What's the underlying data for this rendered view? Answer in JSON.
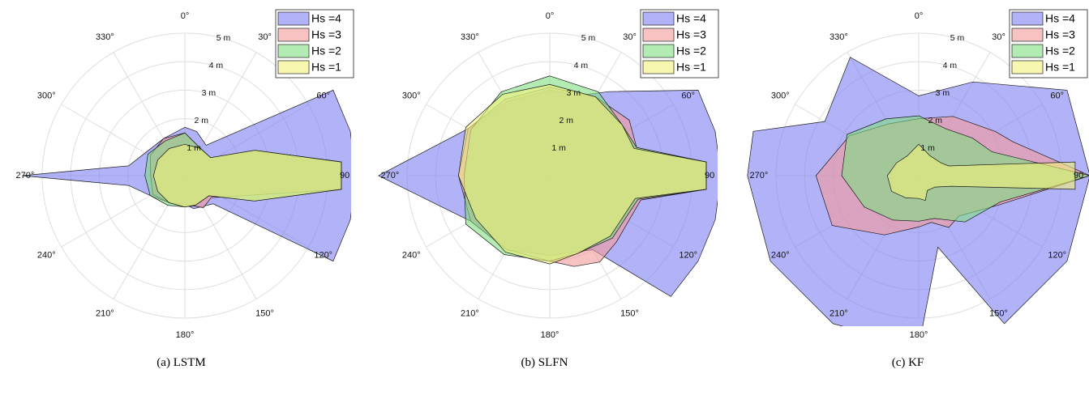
{
  "figure": {
    "panels": [
      {
        "caption": "(a) LSTM"
      },
      {
        "caption": "(b) SLFN"
      },
      {
        "caption": "(c) KF"
      }
    ]
  },
  "chart_data": [
    {
      "type": "polar-area",
      "title": "",
      "caption": "(a) LSTM",
      "angles_deg": [
        0,
        30,
        60,
        90,
        120,
        150,
        180,
        210,
        240,
        270,
        300,
        330
      ],
      "angle_tick_labels": [
        "0°",
        "30°",
        "60°",
        "90",
        "120°",
        "150°",
        "180°",
        "210°",
        "240°",
        "270°",
        "300°",
        "330°"
      ],
      "radial_ticks": [
        1,
        2,
        3,
        4,
        5
      ],
      "radial_tick_labels": [
        "1 m",
        "2 m",
        "3 m",
        "4 m",
        "5 m"
      ],
      "rlim": [
        0,
        5
      ],
      "grid": true,
      "legend": "top-right",
      "series": [
        {
          "name": "Hs =4",
          "color": "#7f7ff5",
          "points": [
            [
              0,
              1.7
            ],
            [
              15,
              1.6
            ],
            [
              35,
              1.3
            ],
            [
              60,
              6.0
            ],
            [
              75,
              6.0
            ],
            [
              90,
              6.0
            ],
            [
              105,
              6.0
            ],
            [
              120,
              6.0
            ],
            [
              135,
              1.4
            ],
            [
              165,
              1.2
            ],
            [
              180,
              1.0
            ],
            [
              210,
              1.1
            ],
            [
              240,
              1.4
            ],
            [
              260,
              2.0
            ],
            [
              270,
              5.7
            ],
            [
              280,
              2.0
            ],
            [
              300,
              1.6
            ],
            [
              330,
              1.5
            ]
          ]
        },
        {
          "name": "Hs =3",
          "color": "#f59a9a",
          "points": [
            [
              0,
              1.5
            ],
            [
              30,
              1.1
            ],
            [
              55,
              1.1
            ],
            [
              70,
              2.6
            ],
            [
              85,
              5.5
            ],
            [
              95,
              5.5
            ],
            [
              105,
              2.6
            ],
            [
              130,
              1.2
            ],
            [
              150,
              1.3
            ],
            [
              165,
              1.1
            ],
            [
              180,
              1.1
            ],
            [
              210,
              1.1
            ],
            [
              240,
              1.3
            ],
            [
              270,
              1.2
            ],
            [
              300,
              1.4
            ],
            [
              330,
              1.5
            ]
          ]
        },
        {
          "name": "Hs =2",
          "color": "#80e080",
          "points": [
            [
              0,
              1.5
            ],
            [
              30,
              1.1
            ],
            [
              55,
              1.1
            ],
            [
              70,
              2.6
            ],
            [
              85,
              5.5
            ],
            [
              95,
              5.5
            ],
            [
              110,
              2.6
            ],
            [
              130,
              1.1
            ],
            [
              160,
              1.1
            ],
            [
              180,
              1.1
            ],
            [
              210,
              1.2
            ],
            [
              240,
              1.4
            ],
            [
              270,
              1.4
            ],
            [
              300,
              1.5
            ],
            [
              330,
              1.4
            ]
          ]
        },
        {
          "name": "Hs =1",
          "color": "#f2f27a",
          "points": [
            [
              0,
              1.1
            ],
            [
              30,
              1.1
            ],
            [
              55,
              1.1
            ],
            [
              70,
              2.6
            ],
            [
              85,
              5.5
            ],
            [
              95,
              5.5
            ],
            [
              110,
              2.6
            ],
            [
              130,
              1.1
            ],
            [
              160,
              1.1
            ],
            [
              180,
              1.1
            ],
            [
              210,
              1.1
            ],
            [
              240,
              1.1
            ],
            [
              270,
              1.1
            ],
            [
              300,
              1.1
            ],
            [
              330,
              1.1
            ]
          ]
        }
      ]
    },
    {
      "type": "polar-area",
      "title": "",
      "caption": "(b) SLFN",
      "angles_deg": [
        0,
        30,
        60,
        90,
        120,
        150,
        180,
        210,
        240,
        270,
        300,
        330
      ],
      "angle_tick_labels": [
        "0°",
        "30°",
        "60°",
        "90",
        "120°",
        "150°",
        "180°",
        "210°",
        "240°",
        "270°",
        "300°",
        "330°"
      ],
      "radial_ticks": [
        1,
        2,
        3,
        4,
        5
      ],
      "radial_tick_labels": [
        "1 m",
        "2 m",
        "3 m",
        "4 m",
        "5 m"
      ],
      "rlim": [
        0,
        5
      ],
      "grid": true,
      "legend": "top-right",
      "series": [
        {
          "name": "Hs =4",
          "color": "#7f7ff5",
          "points": [
            [
              0,
              3.0
            ],
            [
              20,
              3.0
            ],
            [
              35,
              3.6
            ],
            [
              60,
              6.0
            ],
            [
              75,
              6.0
            ],
            [
              90,
              6.0
            ],
            [
              105,
              6.0
            ],
            [
              120,
              6.0
            ],
            [
              135,
              6.0
            ],
            [
              150,
              3.0
            ],
            [
              180,
              2.8
            ],
            [
              210,
              3.0
            ],
            [
              240,
              3.2
            ],
            [
              270,
              6.0
            ],
            [
              300,
              3.3
            ],
            [
              330,
              3.0
            ]
          ]
        },
        {
          "name": "Hs =3",
          "color": "#f59a9a",
          "points": [
            [
              0,
              3.1
            ],
            [
              30,
              3.2
            ],
            [
              55,
              3.4
            ],
            [
              72,
              3.2
            ],
            [
              85,
              5.5
            ],
            [
              95,
              5.5
            ],
            [
              105,
              3.3
            ],
            [
              135,
              3.3
            ],
            [
              150,
              3.5
            ],
            [
              165,
              3.3
            ],
            [
              180,
              3.0
            ],
            [
              210,
              3.0
            ],
            [
              240,
              3.2
            ],
            [
              270,
              3.2
            ],
            [
              300,
              3.3
            ],
            [
              330,
              3.1
            ]
          ]
        },
        {
          "name": "Hs =2",
          "color": "#80e080",
          "points": [
            [
              0,
              3.5
            ],
            [
              30,
              3.4
            ],
            [
              55,
              3.1
            ],
            [
              72,
              3.2
            ],
            [
              85,
              5.5
            ],
            [
              95,
              5.5
            ],
            [
              105,
              3.2
            ],
            [
              135,
              3.1
            ],
            [
              160,
              2.9
            ],
            [
              180,
              3.0
            ],
            [
              210,
              3.2
            ],
            [
              240,
              3.4
            ],
            [
              270,
              3.0
            ],
            [
              300,
              3.2
            ],
            [
              330,
              3.4
            ]
          ]
        },
        {
          "name": "Hs =1",
          "color": "#f2f27a",
          "points": [
            [
              0,
              3.2
            ],
            [
              30,
              3.2
            ],
            [
              55,
              3.1
            ],
            [
              72,
              3.1
            ],
            [
              85,
              5.5
            ],
            [
              95,
              5.5
            ],
            [
              105,
              3.1
            ],
            [
              135,
              3.0
            ],
            [
              160,
              2.9
            ],
            [
              180,
              3.1
            ],
            [
              210,
              3.1
            ],
            [
              240,
              3.0
            ],
            [
              270,
              3.2
            ],
            [
              300,
              3.4
            ],
            [
              330,
              3.3
            ]
          ]
        }
      ]
    },
    {
      "type": "polar-area",
      "title": "",
      "caption": "(c) KF",
      "angles_deg": [
        0,
        30,
        60,
        90,
        120,
        150,
        180,
        210,
        240,
        270,
        300,
        330
      ],
      "angle_tick_labels": [
        "0°",
        "30°",
        "60°",
        "90",
        "120°",
        "150°",
        "180°",
        "210°",
        "240°",
        "270°",
        "300°",
        "330°"
      ],
      "radial_ticks": [
        1,
        2,
        3,
        4,
        5
      ],
      "radial_tick_labels": [
        "1 m",
        "2 m",
        "3 m",
        "4 m",
        "5 m"
      ],
      "rlim": [
        0,
        5
      ],
      "grid": true,
      "legend": "top-right",
      "series": [
        {
          "name": "Hs =4",
          "color": "#7f7ff5",
          "points": [
            [
              0,
              2.8
            ],
            [
              30,
              3.8
            ],
            [
              60,
              6.0
            ],
            [
              90,
              6.0
            ],
            [
              120,
              6.0
            ],
            [
              150,
              6.0
            ],
            [
              165,
              2.6
            ],
            [
              180,
              6.0
            ],
            [
              210,
              6.0
            ],
            [
              240,
              6.0
            ],
            [
              270,
              6.0
            ],
            [
              285,
              6.0
            ],
            [
              300,
              3.8
            ],
            [
              330,
              4.8
            ]
          ]
        },
        {
          "name": "Hs =3",
          "color": "#f59a9a",
          "points": [
            [
              0,
              2.0
            ],
            [
              30,
              2.4
            ],
            [
              60,
              3.1
            ],
            [
              70,
              3.5
            ],
            [
              90,
              6.0
            ],
            [
              110,
              3.0
            ],
            [
              135,
              2.0
            ],
            [
              150,
              2.1
            ],
            [
              165,
              1.7
            ],
            [
              180,
              1.8
            ],
            [
              210,
              2.4
            ],
            [
              240,
              3.5
            ],
            [
              270,
              3.6
            ],
            [
              300,
              2.8
            ],
            [
              330,
              2.1
            ]
          ]
        },
        {
          "name": "Hs =2",
          "color": "#80e080",
          "points": [
            [
              0,
              2.1
            ],
            [
              30,
              1.9
            ],
            [
              55,
              2.3
            ],
            [
              72,
              2.7
            ],
            [
              90,
              6.0
            ],
            [
              108,
              3.0
            ],
            [
              135,
              2.3
            ],
            [
              160,
              1.6
            ],
            [
              180,
              1.6
            ],
            [
              210,
              1.8
            ],
            [
              240,
              2.2
            ],
            [
              270,
              2.7
            ],
            [
              300,
              2.9
            ],
            [
              330,
              2.3
            ]
          ]
        },
        {
          "name": "Hs =1",
          "color": "#f2f27a",
          "points": [
            [
              0,
              1.1
            ],
            [
              30,
              0.8
            ],
            [
              60,
              0.9
            ],
            [
              72,
              1.1
            ],
            [
              85,
              5.5
            ],
            [
              95,
              5.5
            ],
            [
              108,
              1.2
            ],
            [
              125,
              0.7
            ],
            [
              150,
              0.6
            ],
            [
              165,
              0.9
            ],
            [
              180,
              0.8
            ],
            [
              210,
              0.9
            ],
            [
              240,
              1.1
            ],
            [
              270,
              1.1
            ],
            [
              300,
              0.9
            ],
            [
              330,
              0.8
            ]
          ]
        }
      ]
    }
  ]
}
